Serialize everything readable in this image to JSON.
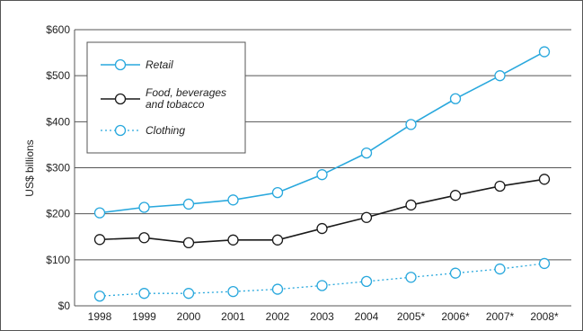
{
  "chart_data": {
    "type": "line",
    "title": "",
    "xlabel": "",
    "ylabel": "US$ billions",
    "categories": [
      "1998",
      "1999",
      "2000",
      "2001",
      "2002",
      "2003",
      "2004",
      "2005*",
      "2006*",
      "2007*",
      "2008*"
    ],
    "y_tick_labels": [
      "$0",
      "$100",
      "$200",
      "$300",
      "$400",
      "$500",
      "$600"
    ],
    "ylim": [
      0,
      600
    ],
    "grid": "horizontal",
    "legend_position": "top-left",
    "series": [
      {
        "name": "Retail",
        "legend_lines": [
          "Retail"
        ],
        "color": "#29a8dd",
        "style": "solid",
        "values": [
          202,
          214,
          221,
          230,
          246,
          285,
          332,
          394,
          450,
          500,
          552
        ]
      },
      {
        "name": "Food, beverages and tobacco",
        "legend_lines": [
          "Food, beverages",
          "and tobacco"
        ],
        "color": "#1a1a1a",
        "style": "solid",
        "values": [
          144,
          148,
          137,
          143,
          143,
          168,
          192,
          219,
          240,
          260,
          275
        ]
      },
      {
        "name": "Clothing",
        "legend_lines": [
          "Clothing"
        ],
        "color": "#29a8dd",
        "style": "dotted",
        "values": [
          21,
          27,
          27,
          31,
          36,
          44,
          53,
          62,
          71,
          80,
          92
        ]
      }
    ]
  }
}
